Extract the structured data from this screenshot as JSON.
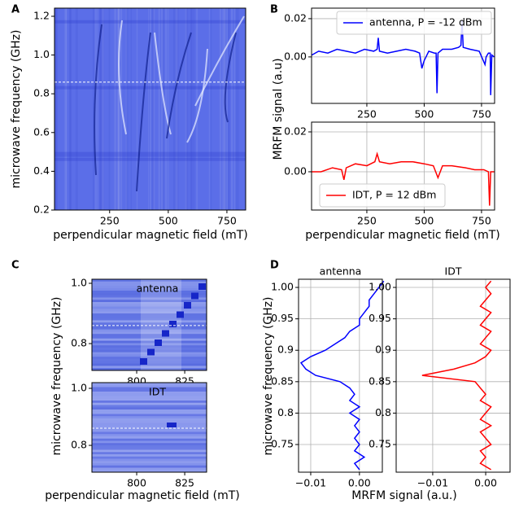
{
  "chart_data": [
    {
      "type": "heatmap",
      "panel": "A",
      "color": "#5b6ee8",
      "xlabel": "perpendicular magnetic field (mT)",
      "ylabel": "microwave frequency (GHz)",
      "xlim": [
        15,
        830
      ],
      "xticks": [
        250,
        500,
        750
      ],
      "ylim": [
        0.2,
        1.242
      ],
      "yticks": [
        0.2,
        0.4,
        0.6,
        0.8,
        {
          "value": 1,
          "label": "1.0"
        },
        1.2
      ],
      "reference_line": 0.86
    },
    {
      "type": "line",
      "panel": "B",
      "ylabel": "MRFM signal (a.u)",
      "grid": true,
      "legend": "upper right",
      "xlim": [
        9,
        807
      ],
      "xticks": [
        250,
        500,
        750
      ],
      "ylim": [
        -0.0243,
        0.0255
      ],
      "yticks": [
        {
          "value": 0,
          "label": "0.00"
        },
        {
          "value": 0.02,
          "label": "0.02"
        }
      ],
      "series": [
        {
          "name": "antenna, P = -12 dBm",
          "color": "#0000ff",
          "x": [
            10,
            40,
            80,
            120,
            160,
            200,
            240,
            280,
            295,
            300,
            305,
            340,
            380,
            420,
            460,
            480,
            490,
            500,
            520,
            545,
            552,
            556,
            560,
            580,
            620,
            650,
            660,
            665,
            670,
            700,
            740,
            765,
            770,
            780,
            788,
            790,
            795,
            805
          ],
          "values": [
            0.001,
            0.003,
            0.002,
            0.004,
            0.003,
            0.002,
            0.004,
            0.003,
            0.004,
            0.01,
            0.003,
            0.002,
            0.003,
            0.004,
            0.003,
            0.002,
            -0.006,
            -0.002,
            0.003,
            0.002,
            0.002,
            -0.019,
            0.002,
            0.004,
            0.004,
            0.005,
            0.006,
            0.019,
            0.005,
            0.004,
            0.003,
            -0.004,
            0,
            0.002,
            0.002,
            -0.02,
            0.001,
            0
          ]
        }
      ]
    },
    {
      "type": "line",
      "xlabel": "perpendicular magnetic field (mT)",
      "grid": true,
      "legend": "lower left",
      "xlim": [
        9,
        807
      ],
      "xticks": [
        250,
        500,
        750
      ],
      "ylim": [
        -0.0192,
        0.0249
      ],
      "yticks": [
        {
          "value": 0,
          "label": "0.00"
        },
        {
          "value": 0.02,
          "label": "0.02"
        }
      ],
      "series": [
        {
          "name": "IDT, P = 12 dBm",
          "color": "#ff0000",
          "x": [
            10,
            50,
            100,
            140,
            150,
            160,
            200,
            250,
            285,
            295,
            305,
            350,
            400,
            450,
            500,
            540,
            560,
            580,
            620,
            680,
            720,
            760,
            780,
            785,
            790,
            805
          ],
          "values": [
            0,
            0,
            0.002,
            0.001,
            -0.004,
            0.002,
            0.004,
            0.003,
            0.005,
            0.009,
            0.005,
            0.004,
            0.005,
            0.005,
            0.004,
            0.003,
            -0.003,
            0.003,
            0.003,
            0.002,
            0.001,
            0.001,
            0,
            -0.017,
            0,
            0
          ]
        }
      ]
    },
    {
      "type": "heatmap",
      "panel": "C",
      "annotation": "antenna",
      "color": "#6a7de8",
      "ylabel": "microwave frequency (GHz)",
      "xlim": [
        776.7,
        836.4
      ],
      "xticks": [
        800,
        825
      ],
      "ylim": [
        0.711,
        1.0135
      ],
      "yticks": [
        0.8,
        {
          "value": 1,
          "label": "1.0"
        }
      ],
      "reference_line": 0.86
    },
    {
      "type": "heatmap",
      "annotation": "IDT",
      "color": "#7384ea",
      "xlabel": "perpendicular magnetic field (mT)",
      "xlim": [
        776.7,
        836.4
      ],
      "xticks": [
        800,
        825
      ],
      "ylim": [
        0.706,
        1.02
      ],
      "yticks": [
        0.8,
        {
          "value": 1,
          "label": "1.0"
        }
      ],
      "reference_line": 0.86
    },
    {
      "type": "vline",
      "panel": "D",
      "title": "antenna",
      "ylabel": "microwave frequency (GHz)",
      "xlabel": "MRFM signal (a.u.)",
      "grid": true,
      "xlim": [
        -0.0125,
        0.0047
      ],
      "xticks": [
        {
          "value": -0.01,
          "label": "−0.01"
        },
        {
          "value": 0,
          "label": "0.00"
        }
      ],
      "ylim": [
        0.706,
        1.013
      ],
      "yticks": [
        0.75,
        0.8,
        0.85,
        0.9,
        0.95,
        {
          "value": 1,
          "label": "1.00"
        }
      ],
      "series": [
        {
          "color": "#0000ff",
          "y": [
            0.71,
            0.72,
            0.73,
            0.74,
            0.75,
            0.76,
            0.77,
            0.78,
            0.79,
            0.8,
            0.81,
            0.82,
            0.83,
            0.84,
            0.85,
            0.86,
            0.87,
            0.88,
            0.89,
            0.9,
            0.91,
            0.92,
            0.93,
            0.94,
            0.95,
            0.96,
            0.97,
            0.98,
            0.99,
            1,
            1.01
          ],
          "values": [
            0,
            -0.001,
            0.001,
            -0.001,
            0,
            -0.001,
            0,
            -0.001,
            0,
            -0.002,
            0,
            -0.002,
            -0.001,
            -0.002,
            -0.004,
            -0.009,
            -0.011,
            -0.012,
            -0.01,
            -0.007,
            -0.005,
            -0.003,
            -0.002,
            0,
            0,
            0.001,
            0.002,
            0.002,
            0.003,
            0.004,
            0.005
          ]
        }
      ]
    },
    {
      "type": "vline",
      "title": "IDT",
      "grid": true,
      "xlim": [
        -0.0169,
        0.0046
      ],
      "xticks": [
        {
          "value": -0.01,
          "label": "−0.01"
        },
        {
          "value": 0,
          "label": "0.00"
        }
      ],
      "ylim": [
        0.706,
        1.013
      ],
      "yticks": [
        0.75,
        0.8,
        0.85,
        0.9,
        0.95,
        {
          "value": 1,
          "label": "1.00"
        }
      ],
      "series": [
        {
          "color": "#ff0000",
          "y": [
            0.71,
            0.72,
            0.73,
            0.74,
            0.75,
            0.76,
            0.77,
            0.78,
            0.79,
            0.8,
            0.81,
            0.82,
            0.83,
            0.84,
            0.85,
            0.86,
            0.87,
            0.88,
            0.89,
            0.9,
            0.91,
            0.92,
            0.93,
            0.94,
            0.95,
            0.96,
            0.97,
            0.98,
            0.99,
            1,
            1.01
          ],
          "values": [
            0.001,
            -0.001,
            0,
            -0.001,
            0.001,
            0,
            -0.001,
            0.001,
            -0.001,
            0,
            0.001,
            -0.001,
            0,
            -0.001,
            -0.002,
            -0.012,
            -0.006,
            -0.002,
            0,
            0.001,
            -0.001,
            0,
            0.001,
            -0.001,
            0,
            0.001,
            -0.001,
            0,
            0.001,
            0,
            0.001
          ]
        }
      ]
    }
  ]
}
